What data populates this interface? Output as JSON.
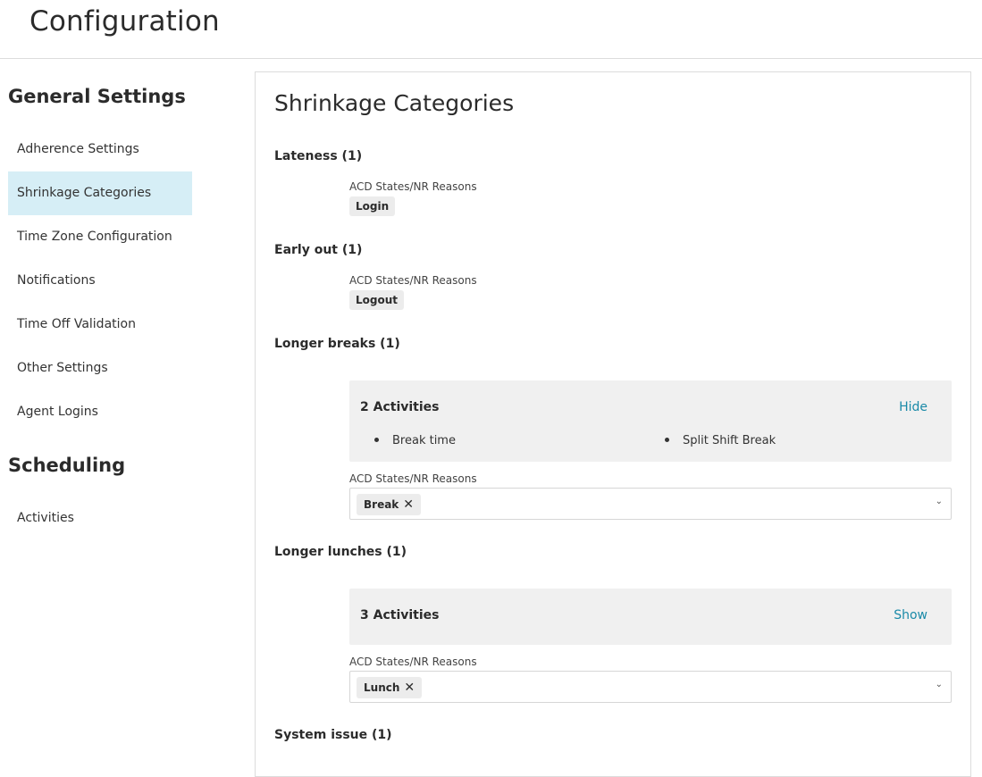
{
  "header": {
    "title": "Configuration"
  },
  "sidebar": {
    "general_heading": "General Settings",
    "general_items": [
      {
        "label": "Adherence Settings",
        "active": false
      },
      {
        "label": "Shrinkage Categories",
        "active": true
      },
      {
        "label": "Time Zone Configuration",
        "active": false
      },
      {
        "label": "Notifications",
        "active": false
      },
      {
        "label": "Time Off Validation",
        "active": false
      },
      {
        "label": "Other Settings",
        "active": false
      },
      {
        "label": "Agent Logins",
        "active": false
      }
    ],
    "scheduling_heading": "Scheduling",
    "scheduling_items": [
      {
        "label": "Activities",
        "active": false
      }
    ]
  },
  "main": {
    "title": "Shrinkage Categories",
    "categories": [
      {
        "title": "Lateness (1)",
        "field_label": "ACD States/NR Reasons",
        "chips": [
          "Login"
        ]
      },
      {
        "title": "Early out (1)",
        "field_label": "ACD States/NR Reasons",
        "chips": [
          "Logout"
        ]
      },
      {
        "title": "Longer breaks (1)",
        "activities": {
          "count_label": "2 Activities",
          "toggle_label": "Hide",
          "items": [
            "Break time",
            "Split Shift Break"
          ]
        },
        "field_label": "ACD States/NR Reasons",
        "selected": [
          "Break"
        ]
      },
      {
        "title": "Longer lunches (1)",
        "activities": {
          "count_label": "3 Activities",
          "toggle_label": "Show",
          "items": []
        },
        "field_label": "ACD States/NR Reasons",
        "selected": [
          "Lunch"
        ]
      },
      {
        "title": "System issue (1)"
      }
    ]
  },
  "icons": {
    "remove": "close-icon",
    "dropdown": "chevron-down-icon"
  },
  "colors": {
    "active_nav": "#d6eef6",
    "link": "#1a8aa8",
    "activities_bg": "#f0f0f0"
  }
}
